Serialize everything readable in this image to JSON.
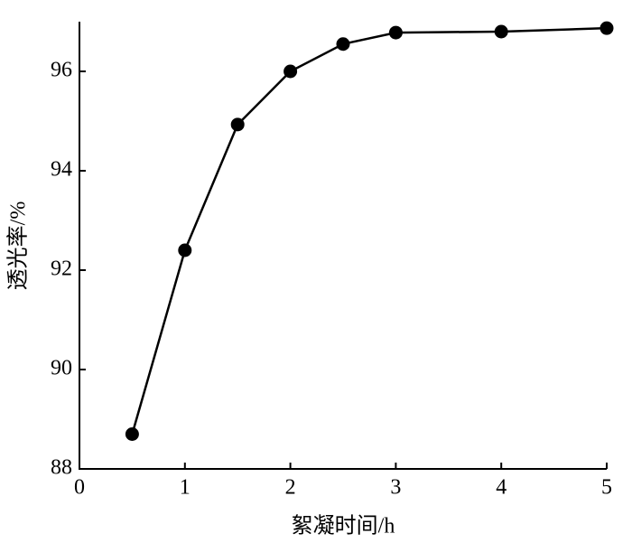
{
  "chart_data": {
    "type": "line",
    "x_label": "絮凝时间/h",
    "y_label": "透光率/%",
    "x": [
      0.5,
      1,
      1.5,
      2,
      2.5,
      3,
      4,
      5
    ],
    "series": [
      {
        "color": "#000000",
        "values": [
          88.7,
          92.4,
          94.93,
          96.0,
          96.55,
          96.78,
          96.8,
          96.87
        ]
      }
    ],
    "xlim": [
      0,
      5
    ],
    "xticks": [
      0,
      1,
      2,
      3,
      4,
      5
    ],
    "ylim": [
      88,
      97
    ],
    "yticks": [
      88,
      90,
      92,
      94,
      96
    ],
    "grid": false
  }
}
